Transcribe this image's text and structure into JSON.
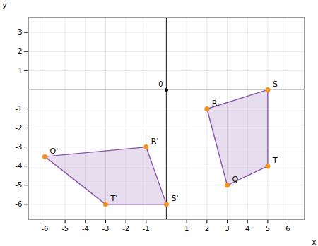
{
  "chart_data": {
    "type": "polygon",
    "xlabel": "x",
    "ylabel": "y",
    "xlim": [
      -6.8,
      6.8
    ],
    "ylim": [
      -6.8,
      3.8
    ],
    "xticks": [
      -6,
      -5,
      -4,
      -3,
      -2,
      -1,
      1,
      2,
      3,
      4,
      5,
      6
    ],
    "yticks": [
      -6,
      -5,
      -4,
      -3,
      -2,
      -1,
      1,
      2,
      3
    ],
    "grid": true,
    "series": [
      {
        "type": "polygon",
        "color": "#8855aa",
        "x": [
          2,
          5,
          5,
          3
        ],
        "y": [
          -1,
          0,
          -4,
          -5
        ]
      },
      {
        "type": "polygon",
        "color": "#8855aa",
        "x": [
          -6,
          -1,
          0,
          -3
        ],
        "y": [
          -3.5,
          -3,
          -6,
          -6
        ]
      },
      {
        "type": "scatter",
        "color": "#f5921e",
        "x": [
          3,
          2,
          5,
          5,
          -6,
          -1,
          0,
          -3
        ],
        "y": [
          -5,
          -1,
          0,
          -4,
          -3.5,
          -3,
          -6,
          -6
        ],
        "labels": [
          "Q",
          "R",
          "S",
          "T",
          "Q'",
          "R'",
          "S'",
          "T'"
        ]
      }
    ],
    "annotations": [
      {
        "text": "0",
        "x": 0,
        "y": 0
      }
    ]
  }
}
